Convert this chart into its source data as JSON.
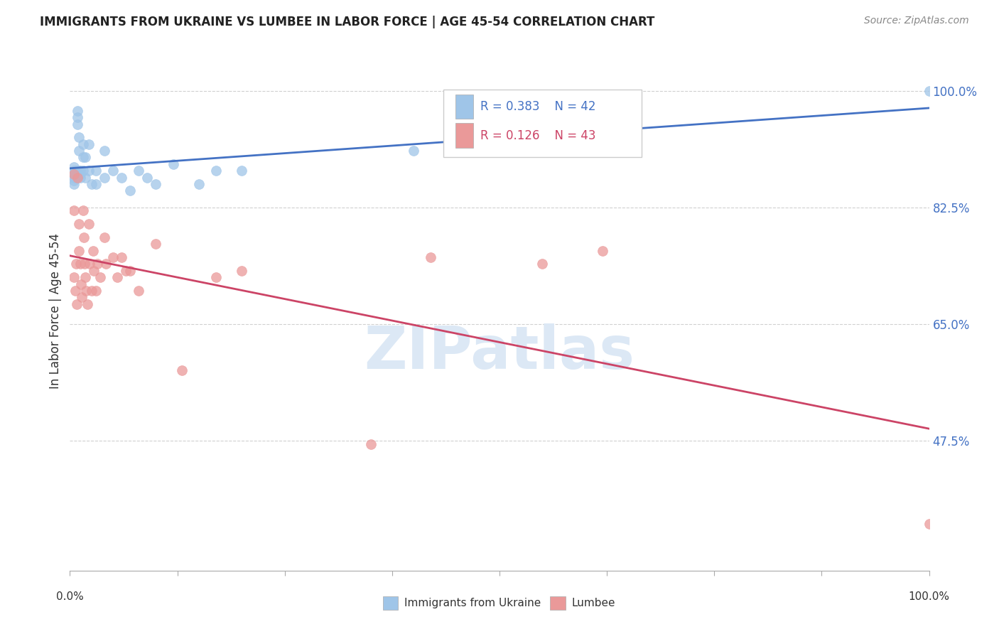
{
  "title": "IMMIGRANTS FROM UKRAINE VS LUMBEE IN LABOR FORCE | AGE 45-54 CORRELATION CHART",
  "source": "Source: ZipAtlas.com",
  "ylabel": "In Labor Force | Age 45-54",
  "xlim": [
    0.0,
    1.0
  ],
  "ylim": [
    0.28,
    1.06
  ],
  "yticks": [
    0.475,
    0.65,
    0.825,
    1.0
  ],
  "ytick_labels": [
    "47.5%",
    "65.0%",
    "82.5%",
    "100.0%"
  ],
  "color_ukraine": "#9fc5e8",
  "color_lumbee": "#ea9999",
  "color_ukraine_line": "#4472c4",
  "color_lumbee_line": "#cc4466",
  "color_ytick": "#4472c4",
  "watermark_color": "#dce8f5",
  "legend_r_ukraine": "R = 0.383",
  "legend_n_ukraine": "N = 42",
  "legend_r_lumbee": "R = 0.126",
  "legend_n_lumbee": "N = 43",
  "ukraine_x": [
    0.005,
    0.005,
    0.005,
    0.005,
    0.005,
    0.005,
    0.007,
    0.007,
    0.009,
    0.009,
    0.009,
    0.01,
    0.01,
    0.01,
    0.012,
    0.012,
    0.012,
    0.015,
    0.015,
    0.015,
    0.018,
    0.018,
    0.022,
    0.022,
    0.025,
    0.03,
    0.03,
    0.04,
    0.04,
    0.05,
    0.06,
    0.07,
    0.08,
    0.09,
    0.1,
    0.12,
    0.15,
    0.17,
    0.2,
    0.4,
    0.62,
    1.0
  ],
  "ukraine_y": [
    0.885,
    0.88,
    0.875,
    0.87,
    0.865,
    0.86,
    0.88,
    0.87,
    0.97,
    0.96,
    0.95,
    0.93,
    0.91,
    0.88,
    0.88,
    0.875,
    0.87,
    0.92,
    0.9,
    0.88,
    0.9,
    0.87,
    0.92,
    0.88,
    0.86,
    0.88,
    0.86,
    0.91,
    0.87,
    0.88,
    0.87,
    0.85,
    0.88,
    0.87,
    0.86,
    0.89,
    0.86,
    0.88,
    0.88,
    0.91,
    0.94,
    1.0
  ],
  "lumbee_x": [
    0.005,
    0.005,
    0.005,
    0.006,
    0.007,
    0.008,
    0.009,
    0.01,
    0.01,
    0.012,
    0.013,
    0.014,
    0.015,
    0.016,
    0.017,
    0.018,
    0.019,
    0.02,
    0.022,
    0.023,
    0.025,
    0.027,
    0.028,
    0.03,
    0.032,
    0.035,
    0.04,
    0.042,
    0.05,
    0.055,
    0.06,
    0.065,
    0.07,
    0.08,
    0.1,
    0.13,
    0.17,
    0.2,
    0.35,
    0.42,
    0.55,
    0.62,
    1.0
  ],
  "lumbee_y": [
    0.875,
    0.82,
    0.72,
    0.7,
    0.74,
    0.68,
    0.87,
    0.8,
    0.76,
    0.74,
    0.71,
    0.69,
    0.82,
    0.78,
    0.74,
    0.72,
    0.7,
    0.68,
    0.8,
    0.74,
    0.7,
    0.76,
    0.73,
    0.7,
    0.74,
    0.72,
    0.78,
    0.74,
    0.75,
    0.72,
    0.75,
    0.73,
    0.73,
    0.7,
    0.77,
    0.58,
    0.72,
    0.73,
    0.47,
    0.75,
    0.74,
    0.76,
    0.35
  ]
}
